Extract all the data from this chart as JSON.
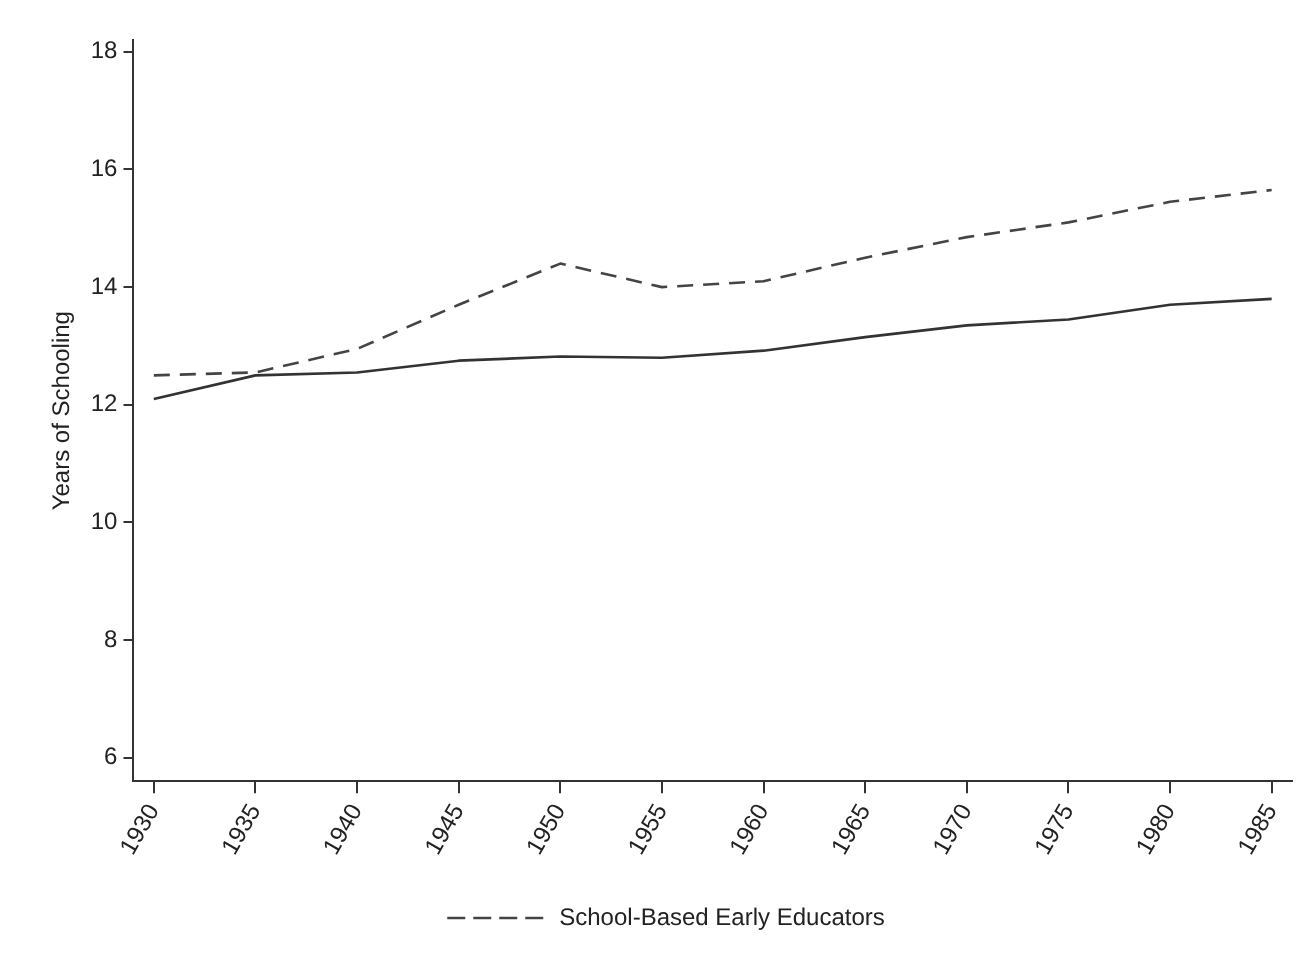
{
  "chart_data": {
    "type": "line",
    "ylabel": "Years of Schooling",
    "x": [
      1930,
      1935,
      1940,
      1945,
      1950,
      1955,
      1960,
      1965,
      1970,
      1975,
      1980,
      1985
    ],
    "xlim": [
      1929,
      1986
    ],
    "xticks": [
      1930,
      1935,
      1940,
      1945,
      1950,
      1955,
      1960,
      1965,
      1970,
      1975,
      1980,
      1985
    ],
    "ylim": [
      5.6,
      18.2
    ],
    "yticks": [
      6,
      8,
      10,
      12,
      14,
      16,
      18
    ],
    "grid": false,
    "legend": "bottom",
    "marker": "none",
    "series": [
      {
        "name": "School-Based Early Educators",
        "color": "#444444",
        "line_style": "dashed",
        "values": [
          12.5,
          12.55,
          12.95,
          13.7,
          14.4,
          14.0,
          14.1,
          14.5,
          14.85,
          15.1,
          15.45,
          15.65
        ]
      },
      {
        "color": "#333333",
        "line_style": "solid",
        "values": [
          12.1,
          12.5,
          12.55,
          12.75,
          12.82,
          12.8,
          12.92,
          13.15,
          13.35,
          13.45,
          13.7,
          13.8
        ]
      }
    ]
  }
}
